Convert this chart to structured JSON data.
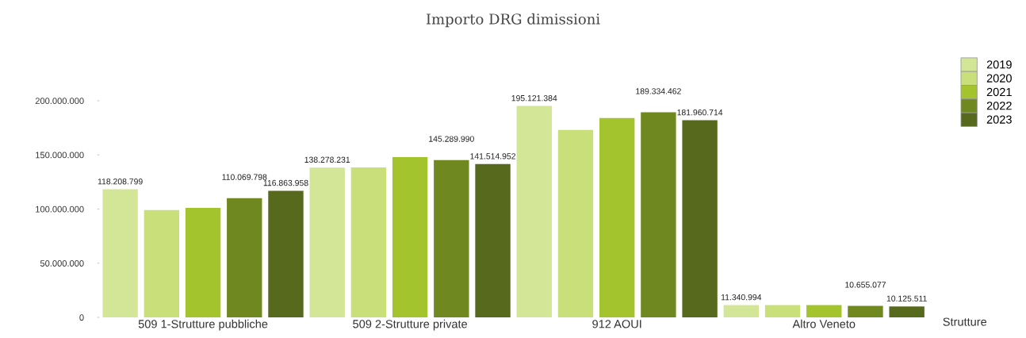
{
  "chart_data": {
    "type": "bar",
    "title": "Importo DRG dimissioni",
    "xlabel": "Strutture",
    "categories": [
      "509 1-Strutture pubbliche",
      "509 2-Strutture private",
      "912 AOUI",
      "Altro Veneto"
    ],
    "series": [
      {
        "name": "2019",
        "color": "#d3e596",
        "values": [
          118208799,
          138278231,
          195121384,
          11340994
        ],
        "value_labels": [
          "118.208.799",
          "138.278.231",
          "195.121.384",
          "11.340.994"
        ]
      },
      {
        "name": "2020",
        "color": "#c8df7a",
        "values": [
          99000000,
          138500000,
          173000000,
          11300000
        ]
      },
      {
        "name": "2021",
        "color": "#a3c42c",
        "values": [
          101000000,
          148000000,
          184000000,
          11400000
        ]
      },
      {
        "name": "2022",
        "color": "#6f8820",
        "values": [
          110069798,
          145289990,
          189334462,
          10655077
        ],
        "value_labels": [
          "110.069.798",
          "145.289.990",
          "189.334.462",
          "10.655.077"
        ]
      },
      {
        "name": "2023",
        "color": "#56691c",
        "values": [
          116863958,
          141514952,
          181960714,
          10125511
        ],
        "value_labels": [
          "116.863.958",
          "141.514.952",
          "181.960.714",
          "10.125.511"
        ]
      }
    ],
    "ylim": [
      0,
      200000000
    ],
    "yticks": [
      0,
      {
        "value": 50000000,
        "label": "50.000.000"
      },
      {
        "value": 100000000,
        "label": "100.000.000"
      },
      {
        "value": 150000000,
        "label": "150.000.000"
      },
      {
        "value": 200000000,
        "label": "200.000.000"
      }
    ],
    "grid": false,
    "legend": "top right"
  }
}
